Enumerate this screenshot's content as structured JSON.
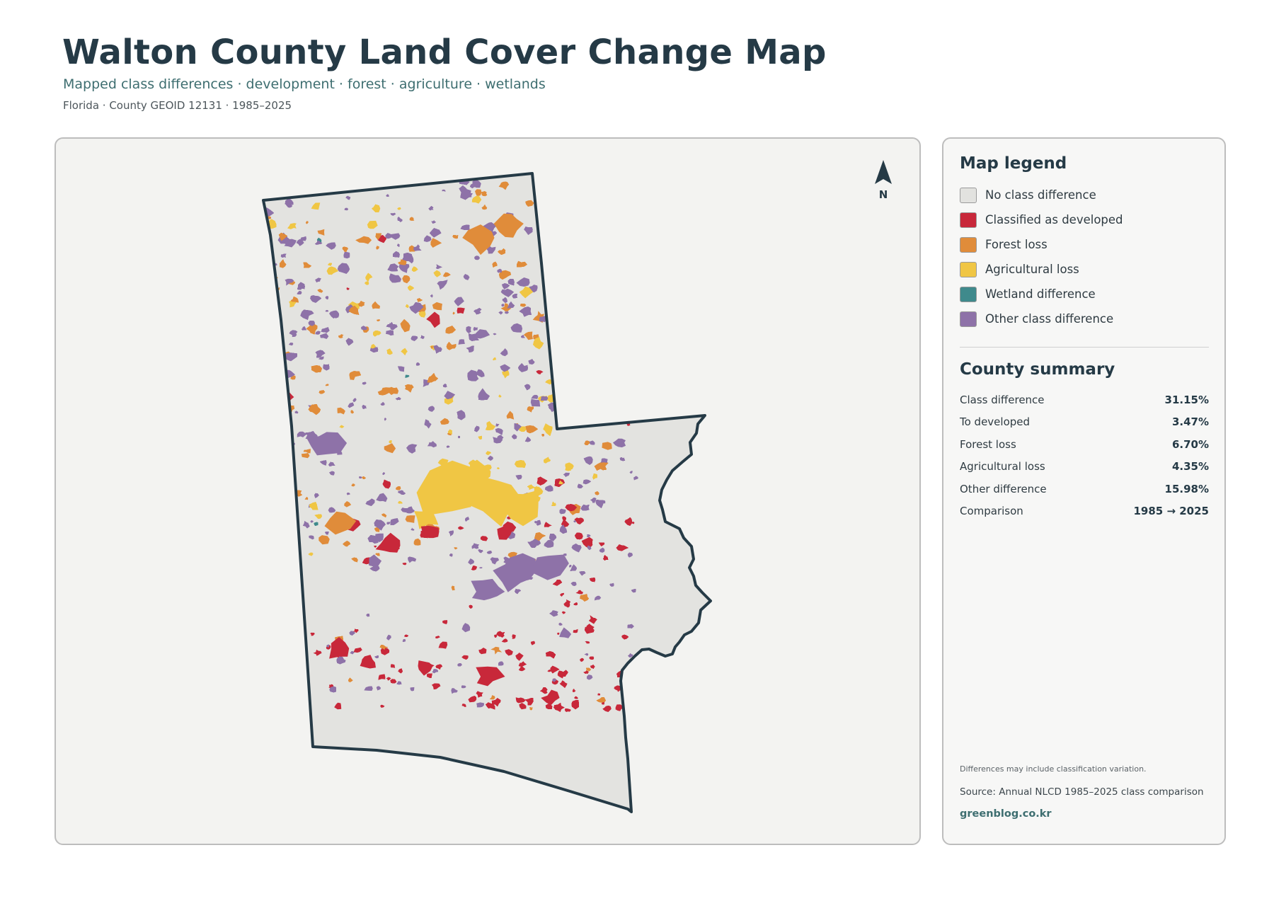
{
  "header": {
    "title": "Walton County Land Cover Change Map",
    "subtitle": "Mapped class differences · development · forest · agriculture · wetlands",
    "meta": "Florida · County GEOID 12131 · 1985–2025"
  },
  "map": {
    "north_label": "N",
    "background_color": "#f3f3f1",
    "boundary_color": "#253a46",
    "base_fill_color": "#e3e3e0"
  },
  "legend": {
    "title": "Map legend",
    "items": [
      {
        "label": "No class difference",
        "color": "#e2e2df"
      },
      {
        "label": "Classified as developed",
        "color": "#c8283a"
      },
      {
        "label": "Forest loss",
        "color": "#e08c3a"
      },
      {
        "label": "Agricultural loss",
        "color": "#f0c644"
      },
      {
        "label": "Wetland difference",
        "color": "#3f8a8c"
      },
      {
        "label": "Other class difference",
        "color": "#8e72a8"
      }
    ]
  },
  "summary": {
    "title": "County summary",
    "rows": [
      {
        "label": "Class difference",
        "value": "31.15%"
      },
      {
        "label": "To developed",
        "value": "3.47%"
      },
      {
        "label": "Forest loss",
        "value": "6.70%"
      },
      {
        "label": "Agricultural loss",
        "value": "4.35%"
      },
      {
        "label": "Other difference",
        "value": "15.98%"
      },
      {
        "label": "Comparison",
        "value": "1985 → 2025"
      }
    ]
  },
  "footer": {
    "note": "Differences may include classification variation.",
    "source": "Source: Annual NLCD 1985–2025 class comparison",
    "site": "greenblog.co.kr"
  }
}
